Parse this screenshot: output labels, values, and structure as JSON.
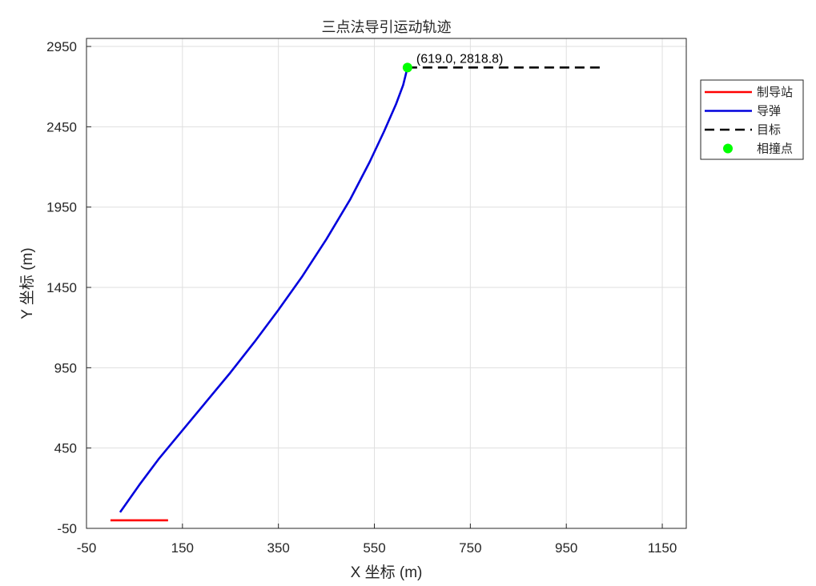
{
  "chart_data": {
    "type": "line",
    "title": "三点法导引运动轨迹",
    "xlabel": "X 坐标 (m)",
    "ylabel": "Y 坐标 (m)",
    "xlim": [
      -50,
      1200
    ],
    "ylim": [
      -50,
      3000
    ],
    "xticks": [
      -50,
      150,
      350,
      550,
      750,
      950,
      1150
    ],
    "yticks": [
      -50,
      450,
      950,
      1450,
      1950,
      2450,
      2950
    ],
    "grid": true,
    "legend_position": "top-right-outside",
    "series": [
      {
        "name": "制导站",
        "color": "#ff0000",
        "style": "solid",
        "x": [
          0,
          120
        ],
        "y": [
          0,
          0
        ]
      },
      {
        "name": "导弹",
        "color": "#0000dd",
        "style": "solid",
        "x": [
          20,
          60,
          100,
          150,
          200,
          250,
          300,
          350,
          400,
          450,
          500,
          540,
          570,
          595,
          610,
          619
        ],
        "y": [
          50,
          220,
          380,
          560,
          740,
          920,
          1110,
          1310,
          1520,
          1750,
          2000,
          2230,
          2420,
          2590,
          2710,
          2818.8
        ]
      },
      {
        "name": "目标",
        "color": "#000000",
        "style": "dashed",
        "x": [
          619,
          1030
        ],
        "y": [
          2818.8,
          2818.8
        ]
      },
      {
        "name": "相撞点",
        "color": "#00ff00",
        "style": "marker",
        "x": [
          619
        ],
        "y": [
          2818.8
        ]
      }
    ],
    "annotations": [
      {
        "text": "(619.0, 2818.8)",
        "x": 619,
        "y": 2818.8
      }
    ]
  }
}
